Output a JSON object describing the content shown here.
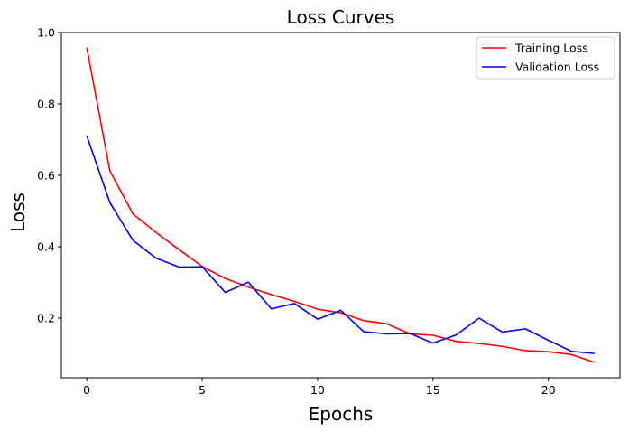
{
  "chart_data": {
    "type": "line",
    "title": "Loss Curves",
    "xlabel": "Epochs",
    "ylabel": "Loss",
    "xlim": [
      -1.1,
      23.1
    ],
    "ylim": [
      0.033,
      1.0
    ],
    "xticks": [
      0,
      5,
      10,
      15,
      20
    ],
    "yticks": [
      0.2,
      0.4,
      0.6,
      0.8,
      1.0
    ],
    "ytick_labels": [
      "0.2",
      "0.4",
      "0.6",
      "0.8",
      "1.0"
    ],
    "grid": false,
    "legend_position": "top-right",
    "x": [
      0,
      1,
      2,
      3,
      4,
      5,
      6,
      7,
      8,
      9,
      10,
      11,
      12,
      13,
      14,
      15,
      16,
      17,
      18,
      19,
      20,
      21,
      22
    ],
    "series": [
      {
        "name": "Training Loss",
        "color": "#ff0000",
        "values": [
          0.958,
          0.613,
          0.492,
          0.44,
          0.392,
          0.345,
          0.311,
          0.287,
          0.266,
          0.247,
          0.225,
          0.215,
          0.193,
          0.184,
          0.156,
          0.152,
          0.135,
          0.129,
          0.121,
          0.109,
          0.106,
          0.098,
          0.076
        ]
      },
      {
        "name": "Validation Loss",
        "color": "#0000ff",
        "values": [
          0.711,
          0.524,
          0.418,
          0.368,
          0.343,
          0.344,
          0.272,
          0.301,
          0.226,
          0.241,
          0.197,
          0.222,
          0.162,
          0.156,
          0.157,
          0.13,
          0.153,
          0.2,
          0.161,
          0.17,
          0.138,
          0.107,
          0.101
        ]
      }
    ]
  }
}
